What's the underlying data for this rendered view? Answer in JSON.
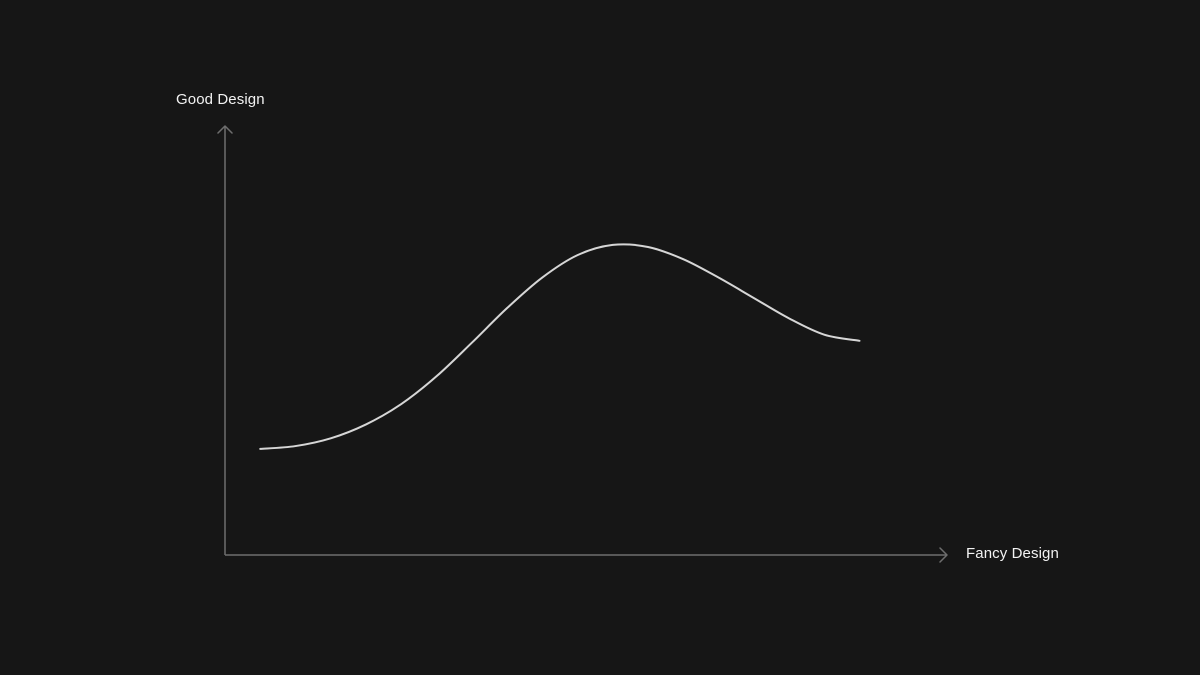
{
  "chart_data": {
    "type": "line",
    "xlabel": "Fancy Design",
    "ylabel": "Good Design",
    "grid": false,
    "legend": "none",
    "xlim": [
      0,
      10
    ],
    "ylim": [
      0,
      10
    ],
    "series": [
      {
        "x": [
          0.5,
          1.0,
          1.5,
          2.0,
          2.5,
          3.0,
          3.5,
          4.0,
          4.5,
          5.0,
          5.5,
          6.0,
          6.5,
          7.0,
          7.5,
          8.0,
          8.5,
          9.0
        ],
        "values": [
          2.6,
          2.67,
          2.86,
          3.2,
          3.7,
          4.38,
          5.2,
          6.05,
          6.8,
          7.35,
          7.6,
          7.55,
          7.25,
          6.8,
          6.3,
          5.8,
          5.4,
          5.25
        ]
      }
    ]
  },
  "colors": {
    "background": "#161616",
    "axis": "#6e6e6e",
    "curve": "#d6d6d6",
    "label": "#f2f2f2"
  }
}
